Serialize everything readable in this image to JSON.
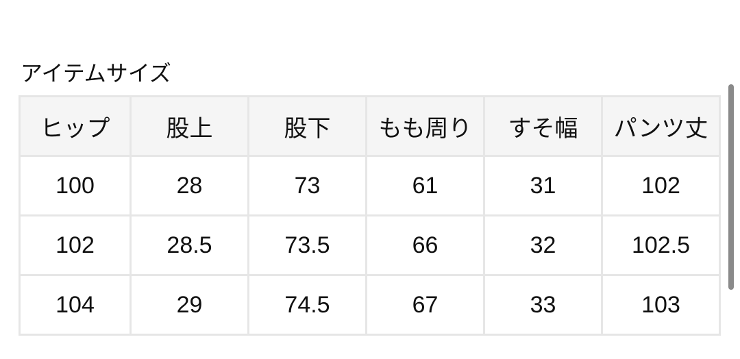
{
  "title": "アイテムサイズ",
  "table": {
    "headers": [
      "ヒップ",
      "股上",
      "股下",
      "もも周り",
      "すそ幅",
      "パンツ丈"
    ],
    "rows": [
      [
        "100",
        "28",
        "73",
        "61",
        "31",
        "102"
      ],
      [
        "102",
        "28.5",
        "73.5",
        "66",
        "32",
        "102.5"
      ],
      [
        "104",
        "29",
        "74.5",
        "67",
        "33",
        "103"
      ]
    ]
  }
}
